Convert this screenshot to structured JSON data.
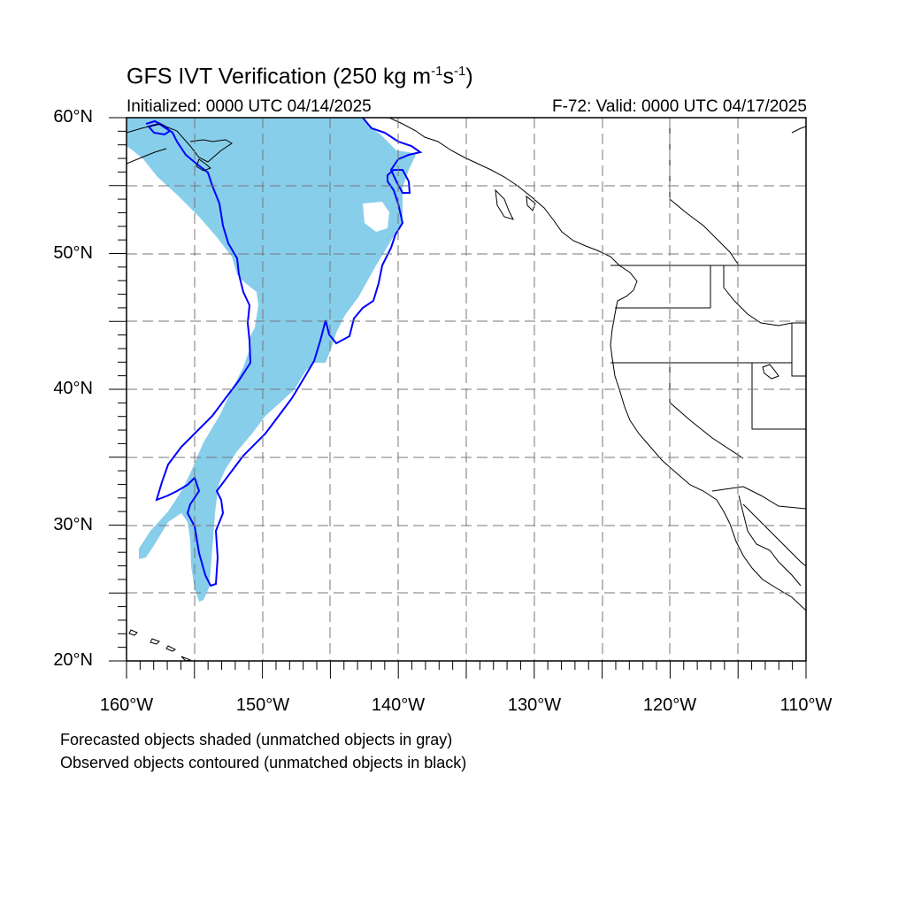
{
  "title": {
    "main": "GFS IVT Verification (250 kg m",
    "exp1": "-1",
    "mid": "s",
    "exp2": "-1",
    "close": ")"
  },
  "subtitle_left": "Initialized: 0000 UTC 04/14/2025",
  "subtitle_right": "F-72: Valid: 0000 UTC 04/17/2025",
  "map": {
    "extent": {
      "lon_min": -160,
      "lon_max": -110,
      "lat_min": 20,
      "lat_max": 60
    },
    "lat_labels": [
      "60°N",
      "50°N",
      "40°N",
      "30°N",
      "20°N"
    ],
    "lon_labels": [
      "160°W",
      "150°W",
      "140°W",
      "130°W",
      "120°W",
      "110°W"
    ],
    "grid_lines": "dashed, every 5 degrees",
    "forecast_fill_color": "#87ceeb",
    "observed_contour_color": "#0000ff"
  },
  "legend_notes": [
    "Forecasted objects shaded (unmatched objects in gray)",
    "Observed objects contoured (unmatched objects in black)"
  ]
}
